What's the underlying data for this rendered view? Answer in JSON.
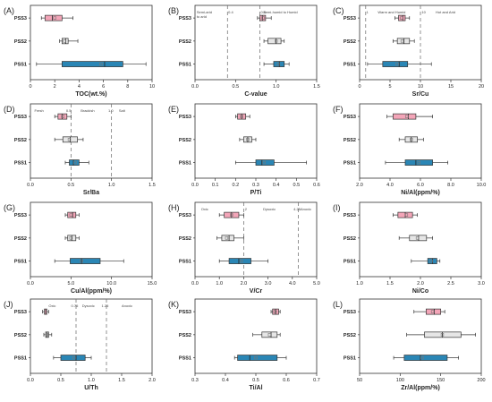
{
  "figure": {
    "colors": {
      "PSS3": "#f3a5b8",
      "PSS2": "#e6e6e6",
      "PSS1": "#2a86b5",
      "stroke": "#333333",
      "median": "#222222",
      "mean": "#777777",
      "guide": "#666666"
    }
  },
  "chart_data": [
    {
      "type": "box",
      "panel_label": "(A)",
      "xlabel": "TOC(wt.%)",
      "xlim": [
        0,
        10
      ],
      "xticks": [
        0,
        2,
        4,
        6,
        8,
        10
      ],
      "tick_labels": [
        "0",
        "2",
        "4",
        "6",
        "8",
        "10"
      ],
      "categories": [
        "PSS3",
        "PSS2",
        "PSS1"
      ],
      "series": [
        {
          "name": "PSS3",
          "whisker_low": 0.9,
          "q1": 1.2,
          "median": 1.8,
          "mean": 2.0,
          "q3": 2.6,
          "whisker_high": 3.5
        },
        {
          "name": "PSS2",
          "whisker_low": 2.4,
          "q1": 2.6,
          "median": 2.9,
          "mean": 2.8,
          "q3": 3.1,
          "whisker_high": 3.9
        },
        {
          "name": "PSS1",
          "whisker_low": 0.5,
          "q1": 2.6,
          "median": 6.1,
          "mean": 5.8,
          "q3": 7.6,
          "whisker_high": 9.5
        }
      ],
      "reference_lines": [],
      "annotations": []
    },
    {
      "type": "box",
      "panel_label": "(B)",
      "xlabel": "C-value",
      "xlim": [
        0,
        1.5
      ],
      "xticks": [
        0,
        0.5,
        1.0,
        1.5
      ],
      "tick_labels": [
        "0.0",
        "0.5",
        "1.0",
        "1.5"
      ],
      "categories": [
        "PSS3",
        "PSS2",
        "PSS1"
      ],
      "series": [
        {
          "name": "PSS3",
          "whisker_low": 0.77,
          "q1": 0.8,
          "median": 0.83,
          "mean": 0.84,
          "q3": 0.87,
          "whisker_high": 0.94
        },
        {
          "name": "PSS2",
          "whisker_low": 0.85,
          "q1": 0.9,
          "median": 1.0,
          "mean": 1.0,
          "q3": 1.06,
          "whisker_high": 1.1
        },
        {
          "name": "PSS1",
          "whisker_low": 0.85,
          "q1": 0.97,
          "median": 1.04,
          "mean": 1.03,
          "q3": 1.1,
          "whisker_high": 1.16
        }
      ],
      "reference_lines": [
        0.4,
        0.8
      ],
      "annotations": [
        {
          "text": "Semi-arid",
          "x": 0.02,
          "row": 1
        },
        {
          "text": "to arid",
          "x": 0.02,
          "row": 2
        },
        {
          "text": "0.4",
          "x": 0.41,
          "row": 1
        },
        {
          "text": "0.8",
          "x": 0.81,
          "row": 1
        },
        {
          "text": "Semi-humid to Humid",
          "x": 0.84,
          "row": 1
        }
      ]
    },
    {
      "type": "box",
      "panel_label": "(C)",
      "xlabel": "Sr/Cu",
      "xlim": [
        0,
        20
      ],
      "xticks": [
        0,
        5,
        10,
        15,
        20
      ],
      "tick_labels": [
        "0",
        "5",
        "10",
        "15",
        "20"
      ],
      "categories": [
        "PSS3",
        "PSS2",
        "PSS1"
      ],
      "series": [
        {
          "name": "PSS3",
          "whisker_low": 5.8,
          "q1": 6.4,
          "median": 7.1,
          "mean": 6.9,
          "q3": 7.5,
          "whisker_high": 8.2
        },
        {
          "name": "PSS2",
          "whisker_low": 5.5,
          "q1": 6.2,
          "median": 7.3,
          "mean": 7.0,
          "q3": 8.2,
          "whisker_high": 9.0
        },
        {
          "name": "PSS1",
          "whisker_low": 1.3,
          "q1": 3.8,
          "median": 6.5,
          "mean": 6.2,
          "q3": 7.9,
          "whisker_high": 11.8
        }
      ],
      "reference_lines": [
        1,
        10
      ],
      "annotations": [
        {
          "text": "1",
          "x": 1.1,
          "row": 1
        },
        {
          "text": "Warm and Humid",
          "x": 3.0,
          "row": 1
        },
        {
          "text": "10",
          "x": 10.2,
          "row": 1
        },
        {
          "text": "Hot and Arid",
          "x": 12.5,
          "row": 1
        }
      ]
    },
    {
      "type": "box",
      "panel_label": "(D)",
      "xlabel": "Sr/Ba",
      "xlim": [
        0,
        1.5
      ],
      "xticks": [
        0,
        0.5,
        1.0,
        1.5
      ],
      "tick_labels": [
        "0.0",
        "0.5",
        "1.0",
        "1.5"
      ],
      "categories": [
        "PSS3",
        "PSS2",
        "PSS1"
      ],
      "series": [
        {
          "name": "PSS3",
          "whisker_low": 0.3,
          "q1": 0.34,
          "median": 0.39,
          "mean": 0.4,
          "q3": 0.45,
          "whisker_high": 0.5
        },
        {
          "name": "PSS2",
          "whisker_low": 0.3,
          "q1": 0.4,
          "median": 0.49,
          "mean": 0.48,
          "q3": 0.58,
          "whisker_high": 0.65
        },
        {
          "name": "PSS1",
          "whisker_low": 0.43,
          "q1": 0.48,
          "median": 0.53,
          "mean": 0.55,
          "q3": 0.6,
          "whisker_high": 0.72
        }
      ],
      "reference_lines": [
        0.5,
        1.0
      ],
      "annotations": [
        {
          "text": "Fresh",
          "x": 0.05,
          "row": 1
        },
        {
          "text": "0.5",
          "x": 0.44,
          "row": 1
        },
        {
          "text": "Brackish",
          "x": 0.62,
          "row": 1
        },
        {
          "text": "1.0",
          "x": 0.96,
          "row": 1
        },
        {
          "text": "Salt",
          "x": 1.09,
          "row": 1
        }
      ]
    },
    {
      "type": "box",
      "panel_label": "(E)",
      "xlabel": "P/Ti",
      "xlim": [
        0,
        0.6
      ],
      "xticks": [
        0,
        0.1,
        0.2,
        0.3,
        0.4,
        0.5,
        0.6
      ],
      "tick_labels": [
        "0.0",
        "0.1",
        "0.2",
        "0.3",
        "0.4",
        "0.5",
        "0.6"
      ],
      "categories": [
        "PSS3",
        "PSS2",
        "PSS1"
      ],
      "series": [
        {
          "name": "PSS3",
          "whisker_low": 0.2,
          "q1": 0.21,
          "median": 0.23,
          "mean": 0.23,
          "q3": 0.25,
          "whisker_high": 0.27
        },
        {
          "name": "PSS2",
          "whisker_low": 0.22,
          "q1": 0.24,
          "median": 0.26,
          "mean": 0.26,
          "q3": 0.28,
          "whisker_high": 0.3
        },
        {
          "name": "PSS1",
          "whisker_low": 0.2,
          "q1": 0.3,
          "median": 0.33,
          "mean": 0.34,
          "q3": 0.39,
          "whisker_high": 0.55
        }
      ],
      "reference_lines": [],
      "annotations": []
    },
    {
      "type": "box",
      "panel_label": "(F)",
      "xlabel": "Ni/Al(ppm/%)",
      "xlim": [
        2,
        10
      ],
      "xticks": [
        2,
        4,
        6,
        8,
        10
      ],
      "tick_labels": [
        "2.0",
        "4.0",
        "6.0",
        "8.0",
        "10.0"
      ],
      "categories": [
        "PSS3",
        "PSS2",
        "PSS1"
      ],
      "series": [
        {
          "name": "PSS3",
          "whisker_low": 3.8,
          "q1": 4.2,
          "median": 5.2,
          "mean": 5.1,
          "q3": 5.7,
          "whisker_high": 6.8
        },
        {
          "name": "PSS2",
          "whisker_low": 4.6,
          "q1": 5.0,
          "median": 5.4,
          "mean": 5.4,
          "q3": 5.8,
          "whisker_high": 6.2
        },
        {
          "name": "PSS1",
          "whisker_low": 3.7,
          "q1": 5.0,
          "median": 5.7,
          "mean": 5.9,
          "q3": 6.8,
          "whisker_high": 7.8
        }
      ],
      "reference_lines": [],
      "annotations": []
    },
    {
      "type": "box",
      "panel_label": "(G)",
      "xlabel": "Cu/Al(ppm/%)",
      "xlim": [
        0,
        15
      ],
      "xticks": [
        0,
        5,
        10,
        15
      ],
      "tick_labels": [
        "0.0",
        "5.0",
        "10.0",
        "15.0"
      ],
      "categories": [
        "PSS3",
        "PSS2",
        "PSS1"
      ],
      "series": [
        {
          "name": "PSS3",
          "whisker_low": 4.3,
          "q1": 4.6,
          "median": 5.2,
          "mean": 5.0,
          "q3": 5.6,
          "whisker_high": 6.0
        },
        {
          "name": "PSS2",
          "whisker_low": 4.3,
          "q1": 4.6,
          "median": 5.1,
          "mean": 5.0,
          "q3": 5.6,
          "whisker_high": 6.0
        },
        {
          "name": "PSS1",
          "whisker_low": 3.0,
          "q1": 4.9,
          "median": 6.3,
          "mean": 6.3,
          "q3": 8.6,
          "whisker_high": 11.5
        }
      ],
      "reference_lines": [],
      "annotations": []
    },
    {
      "type": "box",
      "panel_label": "(H)",
      "xlabel": "V/Cr",
      "xlim": [
        0,
        5
      ],
      "xticks": [
        0,
        1,
        2,
        3,
        4,
        5
      ],
      "tick_labels": [
        "0.0",
        "1.0",
        "2.0",
        "3.0",
        "4.0",
        "5.0"
      ],
      "categories": [
        "PSS3",
        "PSS2",
        "PSS1"
      ],
      "series": [
        {
          "name": "PSS3",
          "whisker_low": 1.0,
          "q1": 1.2,
          "median": 1.5,
          "mean": 1.5,
          "q3": 1.8,
          "whisker_high": 2.0
        },
        {
          "name": "PSS2",
          "whisker_low": 0.9,
          "q1": 1.1,
          "median": 1.4,
          "mean": 1.3,
          "q3": 1.6,
          "whisker_high": 2.0
        },
        {
          "name": "PSS1",
          "whisker_low": 1.0,
          "q1": 1.4,
          "median": 1.8,
          "mean": 1.9,
          "q3": 2.3,
          "whisker_high": 3.0
        }
      ],
      "reference_lines": [
        2,
        4.25
      ],
      "annotations": [
        {
          "text": "Oxic",
          "x": 0.25,
          "row": 1
        },
        {
          "text": "2",
          "x": 2.05,
          "row": 1
        },
        {
          "text": "Dysoxic",
          "x": 2.8,
          "row": 1
        },
        {
          "text": "4.25Anoxic",
          "x": 4.05,
          "row": 1
        }
      ]
    },
    {
      "type": "box",
      "panel_label": "(I)",
      "xlabel": "Ni/Co",
      "xlim": [
        1,
        3
      ],
      "xticks": [
        1,
        1.5,
        2,
        2.5,
        3
      ],
      "tick_labels": [
        "1.0",
        "1.5",
        "2.0",
        "2.5",
        "3.0"
      ],
      "categories": [
        "PSS3",
        "PSS2",
        "PSS1"
      ],
      "series": [
        {
          "name": "PSS3",
          "whisker_low": 1.55,
          "q1": 1.63,
          "median": 1.75,
          "mean": 1.77,
          "q3": 1.87,
          "whisker_high": 1.95
        },
        {
          "name": "PSS2",
          "whisker_low": 1.65,
          "q1": 1.82,
          "median": 1.97,
          "mean": 1.95,
          "q3": 2.1,
          "whisker_high": 2.2
        },
        {
          "name": "PSS1",
          "whisker_low": 1.85,
          "q1": 2.12,
          "median": 2.2,
          "mean": 2.18,
          "q3": 2.27,
          "whisker_high": 2.32
        }
      ],
      "reference_lines": [],
      "annotations": []
    },
    {
      "type": "box",
      "panel_label": "(J)",
      "xlabel": "U/Th",
      "xlim": [
        0,
        2
      ],
      "xticks": [
        0,
        0.5,
        1.0,
        1.5,
        2.0
      ],
      "tick_labels": [
        "0.0",
        "0.5",
        "1.0",
        "1.5",
        "2.0"
      ],
      "categories": [
        "PSS3",
        "PSS2",
        "PSS1"
      ],
      "series": [
        {
          "name": "PSS3",
          "whisker_low": 0.2,
          "q1": 0.23,
          "median": 0.25,
          "mean": 0.25,
          "q3": 0.27,
          "whisker_high": 0.3
        },
        {
          "name": "PSS2",
          "whisker_low": 0.22,
          "q1": 0.25,
          "median": 0.27,
          "mean": 0.27,
          "q3": 0.3,
          "whisker_high": 0.35
        },
        {
          "name": "PSS1",
          "whisker_low": 0.38,
          "q1": 0.5,
          "median": 0.75,
          "mean": 0.72,
          "q3": 0.9,
          "whisker_high": 1.0
        }
      ],
      "reference_lines": [
        0.75,
        1.25
      ],
      "annotations": [
        {
          "text": "Oxic",
          "x": 0.3,
          "row": 1
        },
        {
          "text": "0.75",
          "x": 0.67,
          "row": 1
        },
        {
          "text": "Dysoxic",
          "x": 0.85,
          "row": 1
        },
        {
          "text": "1.25",
          "x": 1.17,
          "row": 1
        },
        {
          "text": "Anoxic",
          "x": 1.5,
          "row": 1
        }
      ]
    },
    {
      "type": "box",
      "panel_label": "(K)",
      "xlabel": "Ti/Al",
      "xlim": [
        0.3,
        0.7
      ],
      "xticks": [
        0.3,
        0.4,
        0.5,
        0.6,
        0.7
      ],
      "tick_labels": [
        "0.3",
        "0.4",
        "0.5",
        "0.6",
        "0.7"
      ],
      "categories": [
        "PSS3",
        "PSS2",
        "PSS1"
      ],
      "series": [
        {
          "name": "PSS3",
          "whisker_low": 0.55,
          "q1": 0.555,
          "median": 0.565,
          "mean": 0.563,
          "q3": 0.575,
          "whisker_high": 0.58
        },
        {
          "name": "PSS2",
          "whisker_low": 0.49,
          "q1": 0.52,
          "median": 0.55,
          "mean": 0.545,
          "q3": 0.57,
          "whisker_high": 0.58
        },
        {
          "name": "PSS1",
          "whisker_low": 0.43,
          "q1": 0.44,
          "median": 0.48,
          "mean": 0.5,
          "q3": 0.57,
          "whisker_high": 0.6
        }
      ],
      "reference_lines": [],
      "annotations": []
    },
    {
      "type": "box",
      "panel_label": "(L)",
      "xlabel": "Zr/Al(ppm/%)",
      "xlim": [
        50,
        200
      ],
      "xticks": [
        50,
        100,
        150,
        200
      ],
      "tick_labels": [
        "50",
        "100",
        "150",
        "200"
      ],
      "categories": [
        "PSS3",
        "PSS2",
        "PSS1"
      ],
      "series": [
        {
          "name": "PSS3",
          "whisker_low": 117,
          "q1": 132,
          "median": 142,
          "mean": 140,
          "q3": 150,
          "whisker_high": 155
        },
        {
          "name": "PSS2",
          "whisker_low": 108,
          "q1": 130,
          "median": 152,
          "mean": 152,
          "q3": 175,
          "whisker_high": 193
        },
        {
          "name": "PSS1",
          "whisker_low": 92,
          "q1": 105,
          "median": 125,
          "mean": 127,
          "q3": 158,
          "whisker_high": 172
        }
      ],
      "reference_lines": [],
      "annotations": []
    }
  ]
}
